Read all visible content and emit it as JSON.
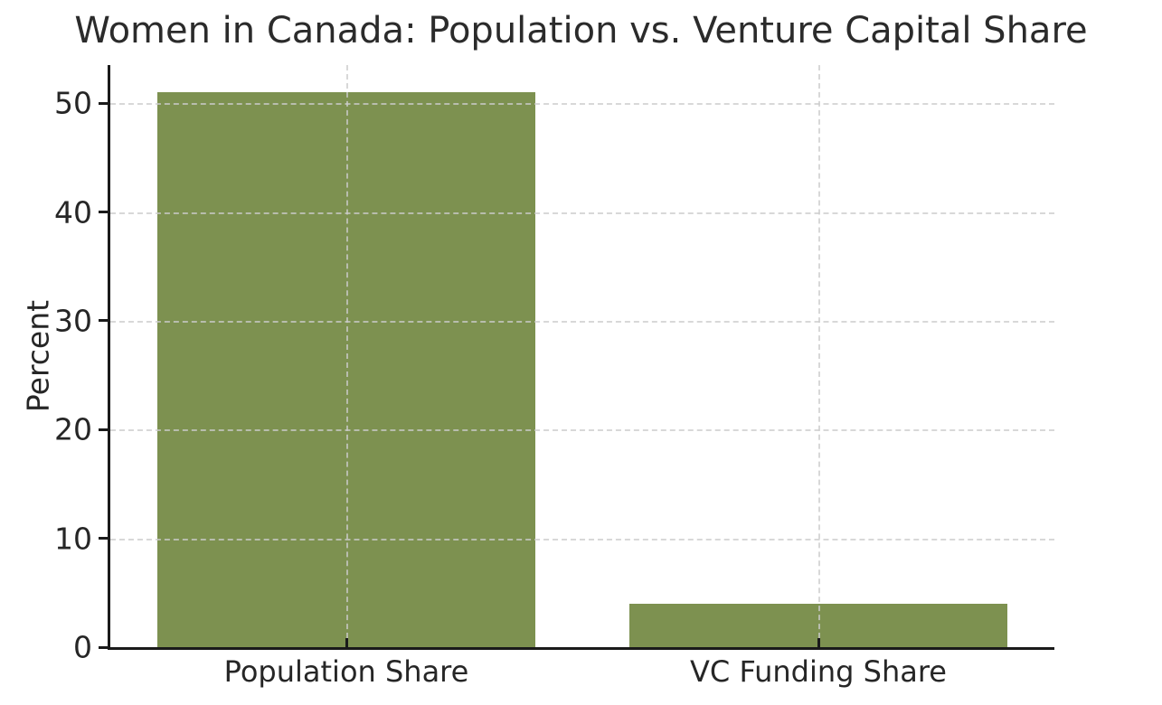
{
  "chart_data": {
    "type": "bar",
    "title": "Women in Canada: Population vs. Venture Capital Share",
    "categories": [
      "Population Share",
      "VC Funding Share"
    ],
    "values": [
      51,
      4
    ],
    "xlabel": "",
    "ylabel": "Percent",
    "ylim": [
      0,
      53.5
    ],
    "yticks": [
      0,
      10,
      20,
      30,
      40,
      50
    ],
    "grid": "dashed gridlines, horizontal at y-ticks and vertical at bar centers, drawn over bars",
    "legend_position": "none",
    "colors": {
      "bar": "#7d9150",
      "grid": "#cccccc",
      "spine": "#1a1a1a",
      "text": "#262626",
      "title_text": "#2b2b2b",
      "background": "#ffffff"
    }
  }
}
